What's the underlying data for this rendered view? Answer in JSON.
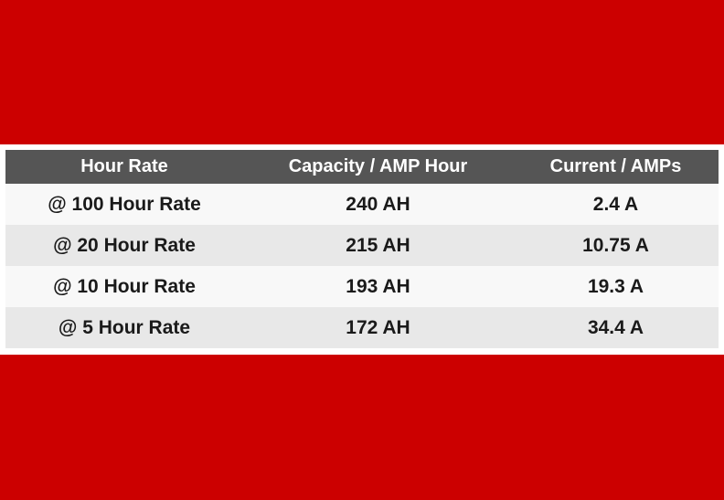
{
  "colors": {
    "band": "#cc0000",
    "header_bg": "#555555",
    "header_text": "#ffffff",
    "row_odd": "#f8f8f8",
    "row_even": "#e8e8e8"
  },
  "table": {
    "headers": [
      "Hour Rate",
      "Capacity / AMP Hour",
      "Current / AMPs"
    ],
    "rows": [
      [
        "@ 100 Hour Rate",
        "240 AH",
        "2.4 A"
      ],
      [
        "@ 20 Hour Rate",
        "215 AH",
        "10.75 A"
      ],
      [
        "@ 10 Hour Rate",
        "193 AH",
        "19.3 A"
      ],
      [
        "@ 5 Hour Rate",
        "172 AH",
        "34.4 A"
      ]
    ]
  }
}
